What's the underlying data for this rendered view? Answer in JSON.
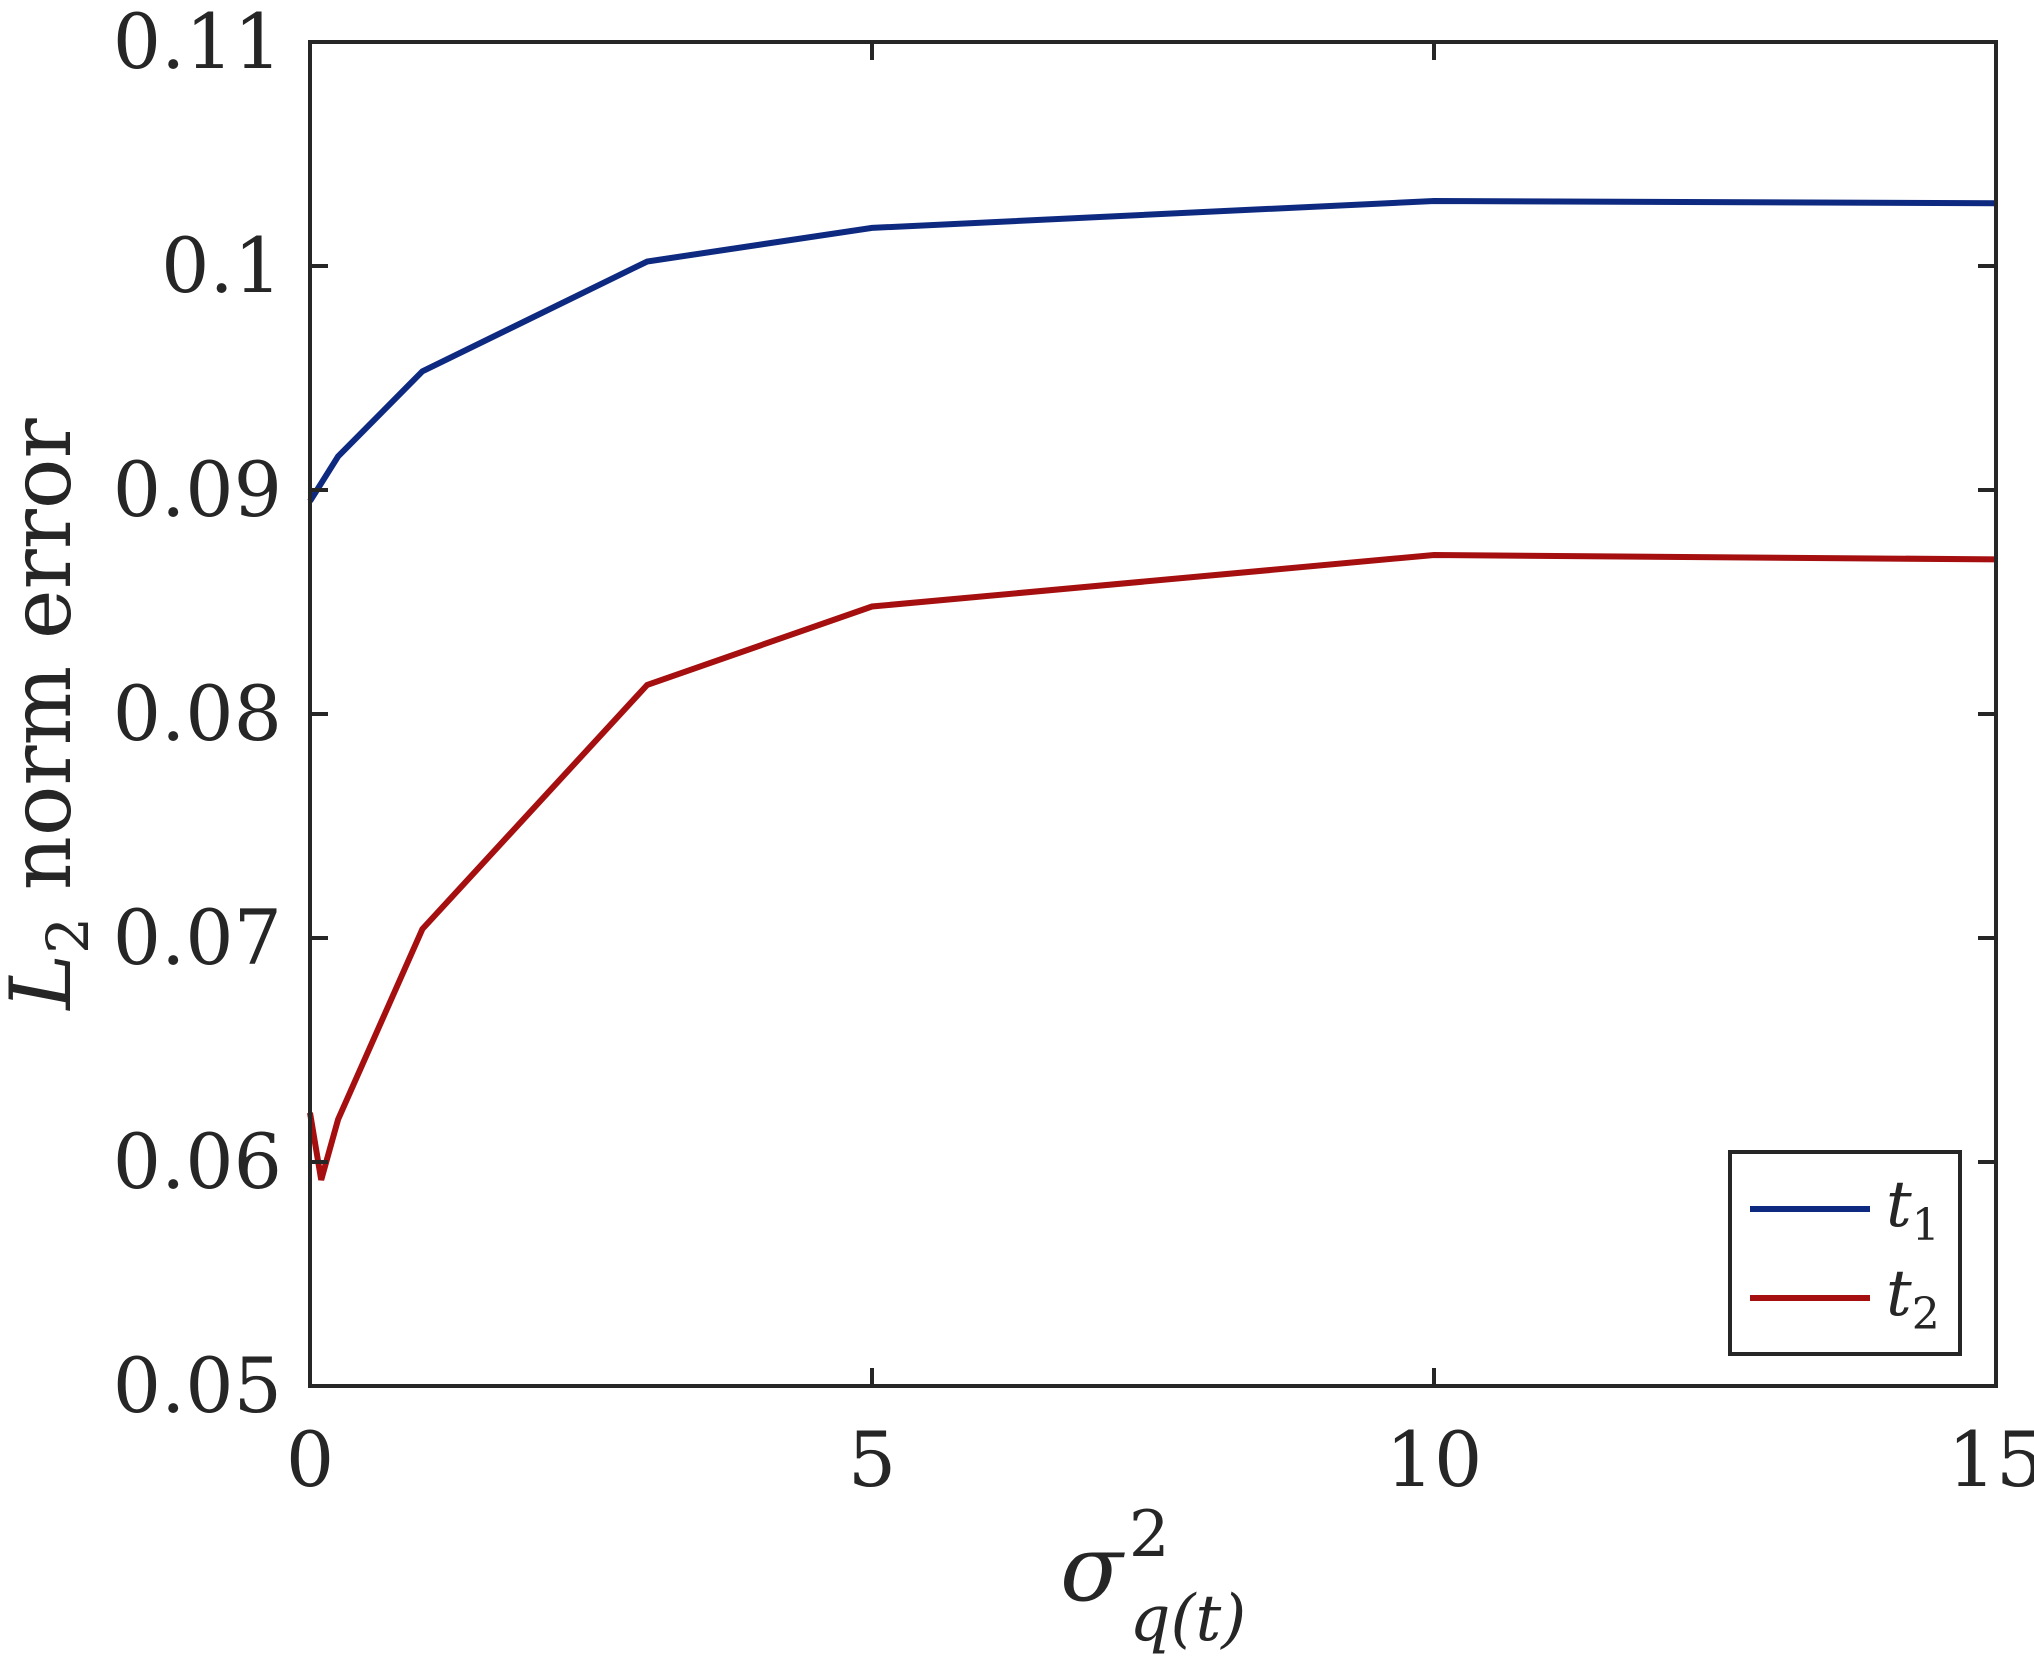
{
  "chart_data": {
    "type": "line",
    "xlabel": {
      "base": "σ",
      "superscript": "2",
      "subscript": "q(t)"
    },
    "ylabel": {
      "base": "L",
      "subscript": "2",
      "text": " norm error"
    },
    "xlim": [
      0,
      15
    ],
    "ylim": [
      0.05,
      0.11
    ],
    "xticks": [
      0,
      5,
      10,
      15
    ],
    "xtick_labels": [
      "0",
      "5",
      "10",
      "15"
    ],
    "yticks": [
      0.05,
      0.06,
      0.07,
      0.08,
      0.09,
      0.1,
      0.11
    ],
    "ytick_labels": [
      "0.05",
      "0.06",
      "0.07",
      "0.08",
      "0.09",
      "0.1",
      "0.11"
    ],
    "grid": false,
    "legend_position": "bottom-right",
    "series": [
      {
        "name": "t",
        "name_sub": "1",
        "color": "#0e2a80",
        "x": [
          0,
          0.25,
          1,
          3,
          5,
          10,
          15
        ],
        "y": [
          0.0895,
          0.0915,
          0.0953,
          0.1002,
          0.1017,
          0.1029,
          0.1028
        ]
      },
      {
        "name": "t",
        "name_sub": "2",
        "color": "#a50f0f",
        "x": [
          0,
          0.1,
          0.25,
          1,
          3,
          5,
          10,
          15
        ],
        "y": [
          0.0622,
          0.0592,
          0.0619,
          0.0704,
          0.0813,
          0.0848,
          0.0871,
          0.0869
        ]
      }
    ]
  }
}
